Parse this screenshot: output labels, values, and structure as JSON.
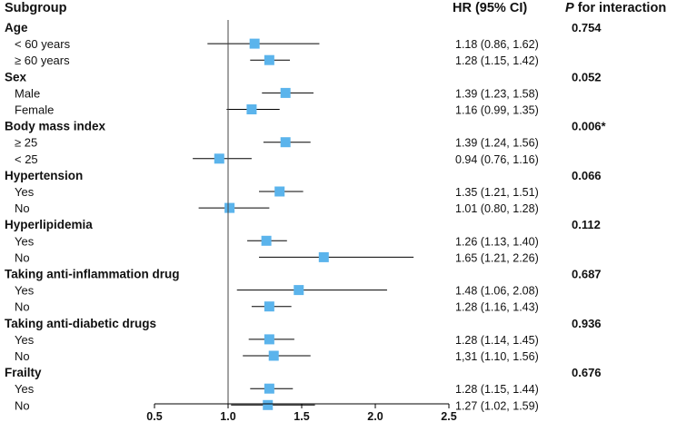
{
  "chart_data": {
    "type": "forest",
    "headers": {
      "subgroup": "Subgroup",
      "hr": "HR (95% CI)",
      "p_italic": "P",
      "p_rest": " for interaction"
    },
    "x_ticks": [
      {
        "value": 0.5,
        "label": "0.5"
      },
      {
        "value": 1.0,
        "label": "1.0"
      },
      {
        "value": 1.5,
        "label": "1.5"
      },
      {
        "value": 2.0,
        "label": "2.0"
      },
      {
        "value": 2.5,
        "label": "2.5"
      }
    ],
    "xlim": [
      0.5,
      2.5
    ],
    "marker_color": "#5bb4ec",
    "groups": [
      {
        "name": "Age",
        "p": "0.754",
        "items": [
          {
            "label": "< 60 years",
            "hr": 1.18,
            "lo": 0.86,
            "hi": 1.62,
            "text": "1.18 (0.86, 1.62)"
          },
          {
            "label": "≥ 60 years",
            "hr": 1.28,
            "lo": 1.15,
            "hi": 1.42,
            "text": "1.28 (1.15, 1.42)"
          }
        ]
      },
      {
        "name": "Sex",
        "p": "0.052",
        "items": [
          {
            "label": "Male",
            "hr": 1.39,
            "lo": 1.23,
            "hi": 1.58,
            "text": "1.39 (1.23, 1.58)"
          },
          {
            "label": "Female",
            "hr": 1.16,
            "lo": 0.99,
            "hi": 1.35,
            "text": "1.16 (0.99, 1.35)"
          }
        ]
      },
      {
        "name": "Body mass index",
        "p": "0.006*",
        "items": [
          {
            "label": "≥ 25",
            "hr": 1.39,
            "lo": 1.24,
            "hi": 1.56,
            "text": "1.39 (1.24, 1.56)"
          },
          {
            "label": "< 25",
            "hr": 0.94,
            "lo": 0.76,
            "hi": 1.16,
            "text": "0.94 (0.76, 1.16)"
          }
        ]
      },
      {
        "name": "Hypertension",
        "p": "0.066",
        "items": [
          {
            "label": "Yes",
            "hr": 1.35,
            "lo": 1.21,
            "hi": 1.51,
            "text": "1.35 (1.21, 1.51)"
          },
          {
            "label": "No",
            "hr": 1.01,
            "lo": 0.8,
            "hi": 1.28,
            "text": "1.01 (0.80, 1.28)"
          }
        ]
      },
      {
        "name": "Hyperlipidemia",
        "p": "0.112",
        "items": [
          {
            "label": "Yes",
            "hr": 1.26,
            "lo": 1.13,
            "hi": 1.4,
            "text": "1.26 (1.13, 1.40)"
          },
          {
            "label": "No",
            "hr": 1.65,
            "lo": 1.21,
            "hi": 2.26,
            "text": "1.65 (1.21, 2.26)"
          }
        ]
      },
      {
        "name": "Taking anti-inflammation drug",
        "p": "0.687",
        "items": [
          {
            "label": "Yes",
            "hr": 1.48,
            "lo": 1.06,
            "hi": 2.08,
            "text": "1.48 (1.06, 2.08)"
          },
          {
            "label": "No",
            "hr": 1.28,
            "lo": 1.16,
            "hi": 1.43,
            "text": "1.28 (1.16, 1.43)"
          }
        ]
      },
      {
        "name": "Taking anti-diabetic drugs",
        "p": "0.936",
        "items": [
          {
            "label": "Yes",
            "hr": 1.28,
            "lo": 1.14,
            "hi": 1.45,
            "text": "1.28 (1.14, 1.45)"
          },
          {
            "label": "No",
            "hr": 1.31,
            "lo": 1.1,
            "hi": 1.56,
            "text": "1,31 (1.10, 1.56)"
          }
        ]
      },
      {
        "name": "Frailty",
        "p": "0.676",
        "items": [
          {
            "label": "Yes",
            "hr": 1.28,
            "lo": 1.15,
            "hi": 1.44,
            "text": "1.28 (1.15, 1.44)"
          },
          {
            "label": "No",
            "hr": 1.27,
            "lo": 1.02,
            "hi": 1.59,
            "text": "1.27 (1.02, 1.59)"
          }
        ]
      }
    ]
  }
}
